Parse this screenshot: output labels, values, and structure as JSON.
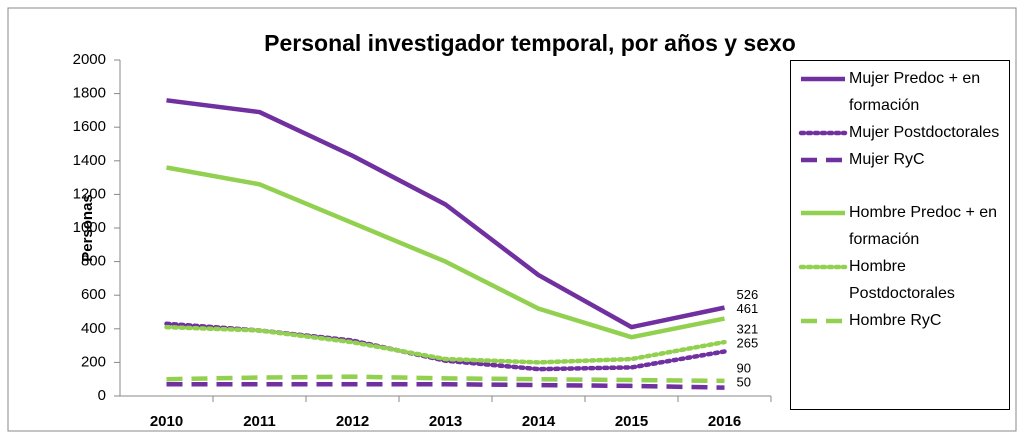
{
  "chart_data": {
    "type": "line",
    "title": "Personal investigador temporal, por años y sexo",
    "y_label": "Personas",
    "categories": [
      "2010",
      "2011",
      "2012",
      "2013",
      "2014",
      "2015",
      "2016"
    ],
    "ylim": [
      0,
      2000
    ],
    "yticks": [
      0,
      200,
      400,
      600,
      800,
      1000,
      1200,
      1400,
      1600,
      1800,
      2000
    ],
    "grid": false,
    "legend": "right",
    "series": [
      {
        "name": "Mujer Predoc + en formación",
        "color": "#7030a0",
        "style": "solid",
        "values": [
          1760,
          1690,
          1430,
          1140,
          720,
          410,
          526
        ]
      },
      {
        "name": "Mujer Postdoctorales",
        "color": "#7030a0",
        "style": "dotted",
        "values": [
          430,
          390,
          330,
          210,
          160,
          170,
          265
        ]
      },
      {
        "name": "Mujer RyC",
        "color": "#7030a0",
        "style": "dashed",
        "values": [
          70,
          70,
          70,
          70,
          65,
          60,
          50
        ]
      },
      {
        "name": "Hombre Predoc + en formación",
        "color": "#92d050",
        "style": "solid",
        "values": [
          1360,
          1260,
          1030,
          800,
          520,
          350,
          461
        ]
      },
      {
        "name": "Hombre Postdoctorales",
        "color": "#92d050",
        "style": "dotted",
        "values": [
          410,
          390,
          320,
          220,
          200,
          220,
          321
        ]
      },
      {
        "name": "Hombre RyC",
        "color": "#92d050",
        "style": "dashed",
        "values": [
          100,
          110,
          115,
          105,
          100,
          95,
          90
        ]
      }
    ]
  }
}
